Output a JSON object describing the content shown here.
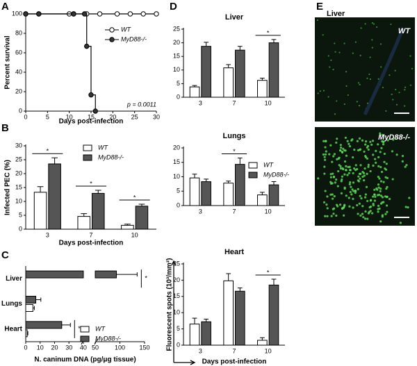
{
  "panel_labels": [
    "A",
    "B",
    "C",
    "D",
    "E"
  ],
  "chart_data": [
    {
      "type": "step",
      "ylabel": "Percent survival",
      "xlabel": "Days post-infection",
      "annotation": "p = 0.0011",
      "xlim": [
        0,
        30
      ],
      "xticks": [
        0,
        5,
        10,
        15,
        20,
        25,
        30
      ],
      "ylim": [
        0,
        100
      ],
      "yticks": [
        0,
        20,
        40,
        60,
        80,
        100
      ],
      "legend": true,
      "series": [
        {
          "name": "WT",
          "color": "#ffffff",
          "x": [
            0,
            3,
            10,
            11,
            14,
            17,
            21,
            24,
            27,
            30
          ],
          "values": [
            100,
            100,
            100,
            100,
            100,
            100,
            100,
            100,
            100,
            100
          ]
        },
        {
          "name": "MyD88-/-",
          "color": "#333333",
          "x": [
            0,
            3,
            11,
            13.5,
            14,
            15,
            16
          ],
          "values": [
            100,
            100,
            100,
            100,
            66.7,
            16.7,
            0
          ]
        }
      ]
    },
    {
      "type": "bar",
      "ylabel": "Infected PEC (%)",
      "xlabel": "Days post-infection",
      "categories": [
        "3",
        "7",
        "10"
      ],
      "ylim": [
        0,
        30
      ],
      "yticks": [
        0,
        5,
        10,
        15,
        20,
        25,
        30
      ],
      "legend": true,
      "series": [
        {
          "name": "WT",
          "color": "#ffffff",
          "values": [
            13.3,
            4.6,
            1.4
          ],
          "errors": [
            2,
            1,
            0.4
          ]
        },
        {
          "name": "MyD88-/-",
          "color": "#555555",
          "values": [
            23.5,
            12.9,
            8.3
          ],
          "errors": [
            2.2,
            1.1,
            0.7
          ]
        }
      ],
      "annotations": [
        {
          "text": "*",
          "category": "3"
        },
        {
          "text": "*",
          "category": "7"
        },
        {
          "text": "*",
          "category": "10"
        }
      ]
    },
    {
      "type": "hbar",
      "xlabel": "N. caninum DNA (pg/μg tissue)",
      "categories": [
        "Liver",
        "Lungs",
        "Heart"
      ],
      "xlim": [
        0,
        150
      ],
      "axis_break": [
        40,
        50
      ],
      "xticks": [
        0,
        10,
        20,
        30,
        40,
        50,
        100,
        150
      ],
      "legend": true,
      "series": [
        {
          "name": "WT",
          "color": "#ffffff",
          "values": [
            0,
            5,
            1
          ],
          "errors": [
            0,
            1,
            0.5
          ]
        },
        {
          "name": "MyD88-/-",
          "color": "#555555",
          "values": [
            93,
            7,
            25
          ],
          "errors": [
            42,
            3.5,
            6
          ]
        }
      ],
      "annotations": [
        {
          "text": "*",
          "category": "Liver"
        },
        {
          "text": "*",
          "category": "Heart"
        }
      ]
    },
    {
      "type": "bar",
      "title": "Liver",
      "categories": [
        "3",
        "7",
        "10"
      ],
      "ylim": [
        0,
        25
      ],
      "yticks": [
        0,
        5,
        10,
        15,
        20,
        25
      ],
      "series": [
        {
          "name": "WT",
          "color": "#ffffff",
          "values": [
            3.8,
            10.8,
            6.2
          ],
          "errors": [
            0.5,
            1.2,
            0.8
          ]
        },
        {
          "name": "MyD88-/-",
          "color": "#555555",
          "values": [
            18.7,
            17.3,
            20
          ],
          "errors": [
            1.5,
            1.4,
            1.2
          ]
        }
      ],
      "annotations": [
        {
          "text": "*",
          "category": "10"
        }
      ]
    },
    {
      "type": "bar",
      "title": "Lungs",
      "categories": [
        "3",
        "7",
        "10"
      ],
      "ylim": [
        0,
        20
      ],
      "yticks": [
        0,
        5,
        10,
        15,
        20
      ],
      "legend": true,
      "series": [
        {
          "name": "WT",
          "color": "#ffffff",
          "values": [
            9.6,
            7.8,
            3.7
          ],
          "errors": [
            1.3,
            0.7,
            0.9
          ]
        },
        {
          "name": "MyD88-/-",
          "color": "#555555",
          "values": [
            8.3,
            14.3,
            7.2
          ],
          "errors": [
            0.9,
            2.2,
            1.1
          ]
        }
      ],
      "annotations": [
        {
          "text": "*",
          "category": "7"
        }
      ]
    },
    {
      "type": "bar",
      "title": "Heart",
      "ylabel": "Fluorescent spots (10³/mm²)",
      "xlabel": "Days post-infection",
      "categories": [
        "3",
        "7",
        "10"
      ],
      "ylim": [
        0,
        25
      ],
      "yticks": [
        0,
        5,
        10,
        15,
        20,
        25
      ],
      "series": [
        {
          "name": "WT",
          "color": "#ffffff",
          "values": [
            6.5,
            19.8,
            1.5
          ],
          "errors": [
            1.8,
            2.2,
            0.8
          ]
        },
        {
          "name": "MyD88-/-",
          "color": "#555555",
          "values": [
            7.2,
            16.6,
            18.5
          ],
          "errors": [
            0.8,
            1.0,
            1.8
          ]
        }
      ],
      "annotations": [
        {
          "text": "*",
          "category": "10"
        }
      ]
    }
  ],
  "images": {
    "title": "Liver",
    "panels": [
      "WT",
      "MyD88-/-"
    ]
  }
}
